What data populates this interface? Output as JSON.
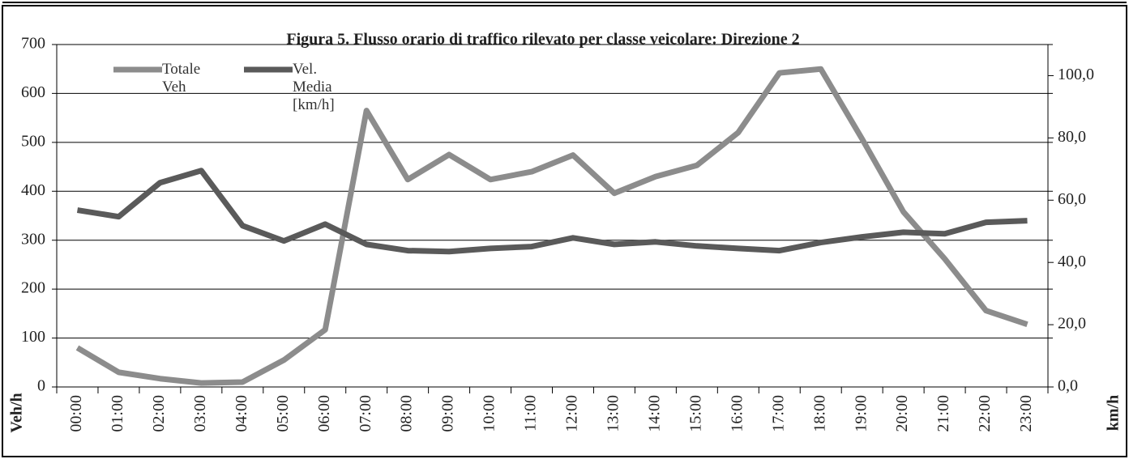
{
  "chart_data": {
    "type": "line",
    "title": "Figura 5. Flusso orario di traffico rilevato per classe veicolare:  Direzione 2",
    "ylabel": "Veh/h",
    "y2label": "km/h",
    "categories": [
      "00:00",
      "01:00",
      "02:00",
      "03:00",
      "04:00",
      "05:00",
      "06:00",
      "07:00",
      "08:00",
      "09:00",
      "10:00",
      "11:00",
      "12:00",
      "13:00",
      "14:00",
      "15:00",
      "16:00",
      "17:00",
      "18:00",
      "19:00",
      "20:00",
      "21:00",
      "22:00",
      "23:00"
    ],
    "series": [
      {
        "name": "Totale Veh",
        "color": "#8c8c8c",
        "values": [
          80,
          30,
          17,
          8,
          10,
          55,
          117,
          565,
          424,
          475,
          424,
          440,
          474,
          396,
          430,
          453,
          520,
          642,
          650,
          507,
          358,
          262,
          156,
          128
        ]
      },
      {
        "name": "Vel. Media [km/h]",
        "color": "#5a5a5a",
        "axis": "y2",
        "values": [
          56.8,
          54.7,
          65.6,
          69.5,
          51.8,
          46.9,
          52.3,
          45.8,
          43.8,
          43.5,
          44.5,
          45.1,
          47.9,
          45.8,
          46.6,
          45.3,
          44.5,
          43.8,
          46.4,
          48.2,
          49.7,
          49.2,
          52.9,
          53.4
        ]
      }
    ],
    "ylim": [
      0,
      700
    ],
    "yticks": [
      0,
      100,
      200,
      300,
      400,
      500,
      600,
      700
    ],
    "y2lim": [
      0,
      110
    ],
    "y2ticks": [
      {
        "value": 0,
        "label": "0,0"
      },
      {
        "value": 20,
        "label": "20,0"
      },
      {
        "value": 40,
        "label": "40,0"
      },
      {
        "value": 60,
        "label": "60,0"
      },
      {
        "value": 80,
        "label": "80,0"
      },
      {
        "value": 100,
        "label": "100,0"
      }
    ],
    "grid": true,
    "legend": "top-left"
  }
}
